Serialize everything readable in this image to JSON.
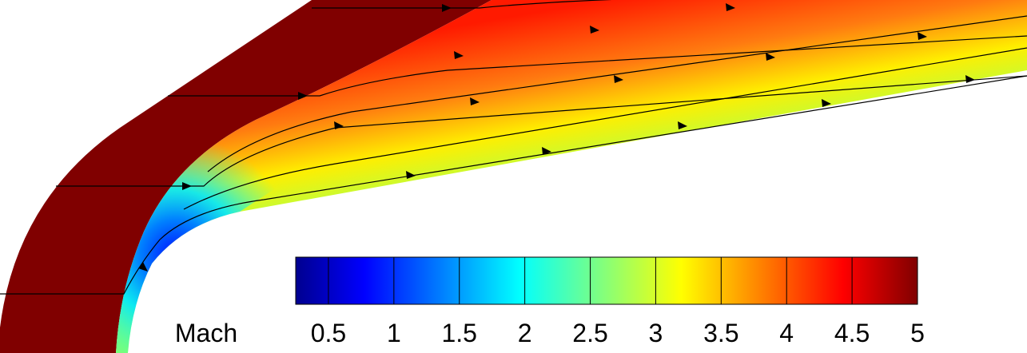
{
  "colorbar": {
    "label": "Mach",
    "lim": [
      0.25,
      5
    ],
    "ticks": [
      0.5,
      1,
      1.5,
      2,
      2.5,
      3,
      3.5,
      4,
      4.5,
      5
    ]
  }
}
